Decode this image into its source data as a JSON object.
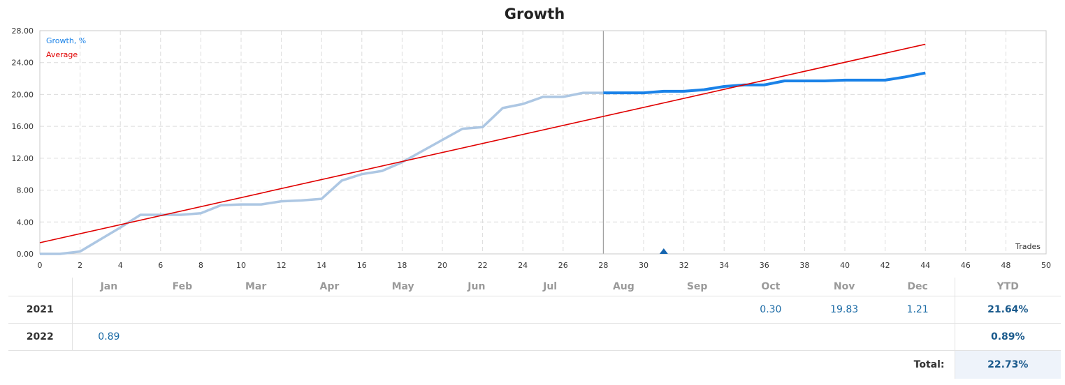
{
  "chart_data": {
    "type": "line",
    "title": "Growth",
    "xlabel": "Trades",
    "ylabel": "",
    "xlim": [
      0,
      50
    ],
    "ylim": [
      0,
      28
    ],
    "x_ticks": [
      0,
      2,
      4,
      6,
      8,
      10,
      12,
      14,
      16,
      18,
      20,
      22,
      24,
      26,
      28,
      30,
      32,
      34,
      36,
      38,
      40,
      42,
      44,
      46,
      48,
      50
    ],
    "y_ticks": [
      "0.00",
      "4.00",
      "8.00",
      "12.00",
      "16.00",
      "20.00",
      "24.00",
      "28.00"
    ],
    "grid": true,
    "legend_position": "top-left",
    "history_boundary_x": 28,
    "marker_x": 31,
    "series": [
      {
        "name": "Growth, %",
        "color": "#1a82e8",
        "history_color": "#adc7e3",
        "x": [
          0,
          1,
          2,
          3,
          4,
          5,
          6,
          7,
          8,
          9,
          10,
          11,
          12,
          13,
          14,
          15,
          16,
          17,
          18,
          19,
          20,
          21,
          22,
          23,
          24,
          25,
          26,
          27,
          28,
          29,
          30,
          31,
          32,
          33,
          34,
          35,
          36,
          37,
          38,
          39,
          40,
          41,
          42,
          43,
          44
        ],
        "values": [
          0,
          0,
          0.3,
          1.8,
          3.3,
          4.9,
          4.9,
          4.9,
          5.1,
          6.1,
          6.2,
          6.2,
          6.6,
          6.7,
          6.9,
          9.2,
          10.0,
          10.4,
          11.5,
          12.9,
          14.3,
          15.7,
          15.9,
          18.3,
          18.8,
          19.7,
          19.7,
          20.2,
          20.2,
          20.2,
          20.2,
          20.4,
          20.4,
          20.6,
          21.0,
          21.2,
          21.2,
          21.7,
          21.7,
          21.7,
          21.8,
          21.8,
          21.8,
          22.2,
          22.7
        ]
      },
      {
        "name": "Average",
        "color": "#e00000",
        "x": [
          0,
          44
        ],
        "values": [
          1.4,
          26.3
        ]
      }
    ]
  },
  "table": {
    "months": [
      "Jan",
      "Feb",
      "Mar",
      "Apr",
      "May",
      "Jun",
      "Jul",
      "Aug",
      "Sep",
      "Oct",
      "Nov",
      "Dec"
    ],
    "ytd_label": "YTD",
    "rows": [
      {
        "year": "2021",
        "values": [
          "",
          "",
          "",
          "",
          "",
          "",
          "",
          "",
          "",
          "0.30",
          "19.83",
          "1.21"
        ],
        "ytd": "21.64%"
      },
      {
        "year": "2022",
        "values": [
          "0.89",
          "",
          "",
          "",
          "",
          "",
          "",
          "",
          "",
          "",
          "",
          ""
        ],
        "ytd": "0.89%"
      }
    ],
    "total_label": "Total:",
    "total_value": "22.73%"
  }
}
